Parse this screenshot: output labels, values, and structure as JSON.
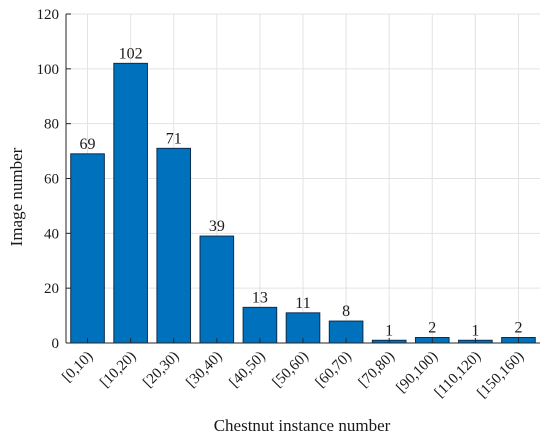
{
  "chart_data": {
    "type": "bar",
    "title": "",
    "xlabel": "Chestnut instance number",
    "ylabel": "Image number",
    "categories": [
      "[0,10)",
      "[10,20)",
      "[20,30)",
      "[30,40)",
      "[40,50)",
      "[50,60)",
      "[60,70)",
      "[70,80)",
      "[90,100)",
      "[110,120)",
      "[150,160)"
    ],
    "values": [
      69,
      102,
      71,
      39,
      13,
      11,
      8,
      1,
      2,
      1,
      2
    ],
    "data_labels": [
      "69",
      "102",
      "71",
      "39",
      "13",
      "11",
      "8",
      "1",
      "2",
      "1",
      "2"
    ],
    "ylim": [
      0,
      120
    ],
    "yticks": [
      0,
      20,
      40,
      60,
      80,
      100,
      120
    ],
    "ytick_labels": [
      "0",
      "20",
      "40",
      "60",
      "80",
      "100",
      "120"
    ],
    "grid": true,
    "bar_color": "#0072BD",
    "bar_edge_color": "#0b2c4f"
  }
}
